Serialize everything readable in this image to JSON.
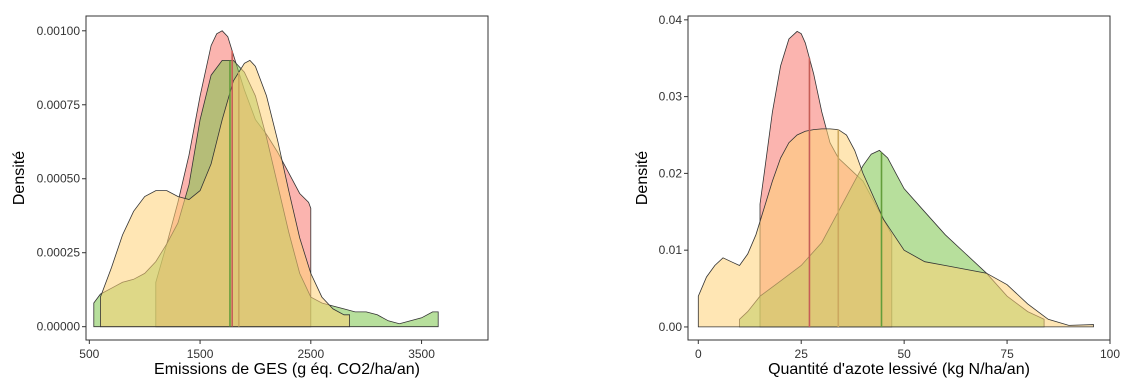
{
  "chart_data": [
    {
      "type": "area",
      "xlabel": "Emissions de GES (g éq. CO2/ha/an)",
      "ylabel": "Densité",
      "xlim": [
        470,
        4100
      ],
      "ylim": [
        -4.5e-05,
        0.00105
      ],
      "xticks": [
        500,
        1500,
        2500,
        3500
      ],
      "xtick_labels": [
        "500",
        "1500",
        "2500",
        "3500"
      ],
      "yticks": [
        0,
        0.00025,
        0.0005,
        0.00075,
        0.001
      ],
      "ytick_labels": [
        "0.00000",
        "0.00025",
        "0.00050",
        "0.00075",
        "0.00100"
      ],
      "grid": false,
      "series": [
        {
          "color": "#f8766d",
          "x": [
            1100,
            1200,
            1300,
            1400,
            1500,
            1600,
            1650,
            1700,
            1750,
            1800,
            1850,
            1900,
            2000,
            2100,
            2200,
            2300,
            2400,
            2480,
            2500
          ],
          "y": [
            0.00015,
            0.00028,
            0.00042,
            0.00058,
            0.00078,
            0.00095,
            0.00099,
            0.001,
            0.00098,
            0.00092,
            0.00086,
            0.0008,
            0.0007,
            0.00065,
            0.00059,
            0.00052,
            0.00045,
            0.00042,
            0.0004
          ],
          "mean": 1790
        },
        {
          "color": "#7cc44a",
          "x": [
            540,
            600,
            700,
            800,
            900,
            1000,
            1100,
            1200,
            1300,
            1400,
            1500,
            1600,
            1700,
            1800,
            1900,
            2000,
            2100,
            2200,
            2300,
            2400,
            2500,
            2600,
            2700,
            2800,
            2900,
            3000,
            3100,
            3200,
            3300,
            3400,
            3500,
            3600,
            3650
          ],
          "y": [
            8e-05,
            0.00011,
            0.00013,
            0.00015,
            0.00016,
            0.00018,
            0.00022,
            0.00028,
            0.00035,
            0.00048,
            0.0007,
            0.00085,
            0.0009,
            0.0009,
            0.00086,
            0.00078,
            0.00064,
            0.00048,
            0.00032,
            0.00018,
            0.0001,
            8e-05,
            7e-05,
            6e-05,
            5e-05,
            5e-05,
            4e-05,
            2e-05,
            1e-05,
            2e-05,
            3e-05,
            5e-05,
            5e-05
          ],
          "mean": 1770
        },
        {
          "color": "#ffd277",
          "x": [
            600,
            700,
            800,
            900,
            1000,
            1100,
            1200,
            1300,
            1400,
            1500,
            1600,
            1700,
            1800,
            1900,
            1950,
            2000,
            2100,
            2200,
            2300,
            2400,
            2500,
            2600,
            2700,
            2800,
            2850
          ],
          "y": [
            0.0001,
            0.0002,
            0.00031,
            0.00039,
            0.00044,
            0.00046,
            0.00046,
            0.00044,
            0.00043,
            0.00046,
            0.00055,
            0.0007,
            0.00083,
            0.00089,
            0.0009,
            0.00088,
            0.00078,
            0.00063,
            0.00046,
            0.0003,
            0.00018,
            0.0001,
            6e-05,
            4e-05,
            4e-05
          ],
          "mean": 1850
        }
      ]
    },
    {
      "type": "area",
      "xlabel": "Quantité d'azote lessivé (kg N/ha/an)",
      "ylabel": "Densité",
      "xlim": [
        -2.5,
        100
      ],
      "ylim": [
        -0.0017,
        0.0405
      ],
      "xticks": [
        0,
        25,
        50,
        75,
        100
      ],
      "xtick_labels": [
        "0",
        "25",
        "50",
        "75",
        "100"
      ],
      "yticks": [
        0,
        0.01,
        0.02,
        0.03,
        0.04
      ],
      "ytick_labels": [
        "0.00",
        "0.01",
        "0.02",
        "0.03",
        "0.04"
      ],
      "grid": false,
      "series": [
        {
          "color": "#f8766d",
          "x": [
            15,
            16,
            18,
            20,
            22,
            24,
            25,
            26,
            28,
            30,
            32,
            34,
            36,
            38,
            40,
            42,
            44,
            46,
            47
          ],
          "y": [
            0.016,
            0.02,
            0.028,
            0.034,
            0.0375,
            0.0385,
            0.0382,
            0.037,
            0.033,
            0.028,
            0.024,
            0.022,
            0.021,
            0.02,
            0.019,
            0.017,
            0.015,
            0.013,
            0.012
          ],
          "mean": 27
        },
        {
          "color": "#7cc44a",
          "x": [
            10,
            12,
            15,
            20,
            25,
            30,
            35,
            38,
            40,
            42,
            44,
            46,
            48,
            50,
            55,
            60,
            65,
            70,
            75,
            80,
            84
          ],
          "y": [
            0.001,
            0.002,
            0.004,
            0.006,
            0.008,
            0.011,
            0.016,
            0.019,
            0.021,
            0.0225,
            0.023,
            0.022,
            0.02,
            0.018,
            0.015,
            0.012,
            0.0095,
            0.007,
            0.004,
            0.002,
            0.001
          ],
          "mean": 44.5
        },
        {
          "color": "#ffd277",
          "x": [
            0,
            2,
            4,
            6,
            8,
            10,
            12,
            14,
            16,
            18,
            20,
            22,
            24,
            26,
            28,
            30,
            32,
            34,
            36,
            38,
            40,
            45,
            50,
            55,
            60,
            65,
            70,
            75,
            80,
            85,
            90,
            96
          ],
          "y": [
            0.004,
            0.0065,
            0.008,
            0.009,
            0.0085,
            0.008,
            0.0095,
            0.012,
            0.0155,
            0.019,
            0.022,
            0.024,
            0.025,
            0.0255,
            0.0257,
            0.0258,
            0.0258,
            0.0257,
            0.025,
            0.023,
            0.02,
            0.014,
            0.01,
            0.0085,
            0.008,
            0.0075,
            0.007,
            0.0055,
            0.003,
            0.001,
            0.0002,
            0.0003
          ],
          "mean": 34
        }
      ]
    }
  ]
}
